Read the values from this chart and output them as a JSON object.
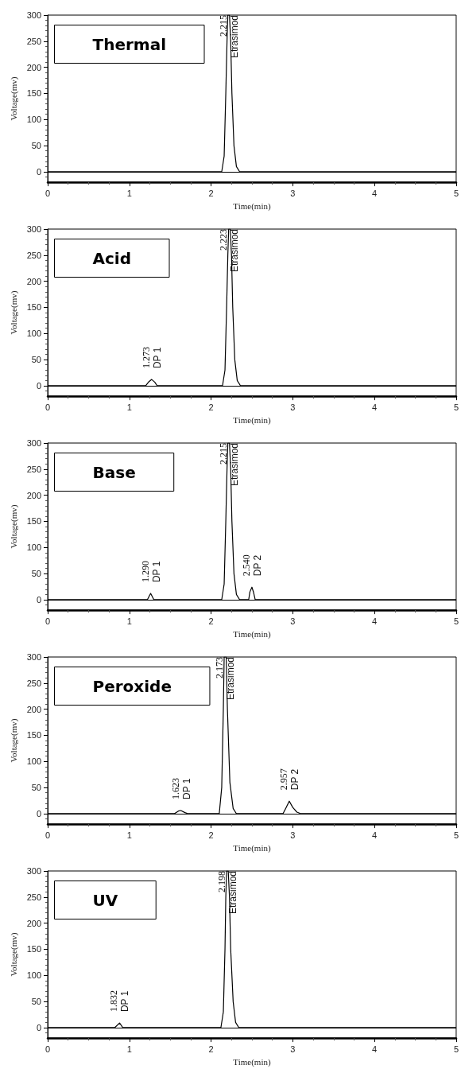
{
  "chart_data": [
    {
      "type": "line",
      "title": "Thermal",
      "xlabel": "Time(min)",
      "ylabel": "Voltage(mv)",
      "xlim": [
        0,
        5
      ],
      "ylim": [
        -20,
        300
      ],
      "xticks": [
        0,
        1,
        2,
        3,
        4,
        5
      ],
      "yticks": [
        0,
        50,
        100,
        150,
        200,
        250,
        300
      ],
      "series": [
        {
          "color": "#000000",
          "x": [
            0,
            2.13,
            2.16,
            2.18,
            2.195,
            2.205,
            2.225,
            2.24,
            2.255,
            2.28,
            2.31,
            2.35,
            5
          ],
          "values": [
            0,
            0,
            30,
            150,
            250,
            300,
            300,
            250,
            150,
            50,
            10,
            0,
            0
          ]
        }
      ],
      "ref_lines": [
        {
          "axis": "y",
          "value": 0,
          "label": null,
          "color": "#000000"
        }
      ],
      "annotations": [
        {
          "text": "2.215",
          "x": 2.215,
          "y": 300
        },
        {
          "text": "Etrasimod",
          "x": 2.215,
          "y": 300
        }
      ]
    },
    {
      "type": "line",
      "title": "Acid",
      "xlabel": "Time(min)",
      "ylabel": "Voltage(mv)",
      "xlim": [
        0,
        5
      ],
      "ylim": [
        -20,
        300
      ],
      "xticks": [
        0,
        1,
        2,
        3,
        4,
        5
      ],
      "yticks": [
        0,
        50,
        100,
        150,
        200,
        250,
        300
      ],
      "series": [
        {
          "color": "#000000",
          "x": [
            0,
            1.2,
            1.24,
            1.273,
            1.31,
            1.34,
            2.14,
            2.17,
            2.19,
            2.205,
            2.215,
            2.235,
            2.25,
            2.265,
            2.29,
            2.32,
            2.36,
            5
          ],
          "values": [
            0,
            0,
            8,
            12,
            7,
            0,
            0,
            30,
            150,
            250,
            300,
            300,
            250,
            150,
            50,
            10,
            0,
            0
          ]
        }
      ],
      "ref_lines": [
        {
          "axis": "y",
          "value": 0,
          "label": null,
          "color": "#000000"
        }
      ],
      "annotations": [
        {
          "text": "1.273",
          "x": 1.273,
          "y": 12
        },
        {
          "text": "DP 1",
          "x": 1.273,
          "y": 12
        },
        {
          "text": "2.223",
          "x": 2.223,
          "y": 300
        },
        {
          "text": "Etrasimod",
          "x": 2.223,
          "y": 300
        }
      ]
    },
    {
      "type": "line",
      "title": "Base",
      "xlabel": "Time(min)",
      "ylabel": "Voltage(mv)",
      "xlim": [
        0,
        5
      ],
      "ylim": [
        -20,
        300
      ],
      "xticks": [
        0,
        1,
        2,
        3,
        4,
        5
      ],
      "yticks": [
        0,
        50,
        100,
        150,
        200,
        250,
        300
      ],
      "series": [
        {
          "color": "#000000",
          "x": [
            0,
            1.22,
            1.26,
            1.3,
            2.13,
            2.16,
            2.18,
            2.195,
            2.205,
            2.225,
            2.24,
            2.255,
            2.28,
            2.31,
            2.35,
            2.46,
            2.475,
            2.5,
            2.52,
            2.54,
            5
          ],
          "values": [
            0,
            0,
            12,
            0,
            0,
            30,
            150,
            250,
            300,
            300,
            250,
            150,
            50,
            10,
            0,
            0,
            15,
            24,
            14,
            0,
            0
          ]
        }
      ],
      "ref_lines": [
        {
          "axis": "y",
          "value": 0,
          "label": null,
          "color": "#000000"
        }
      ],
      "annotations": [
        {
          "text": "1.290",
          "x": 1.26,
          "y": 12
        },
        {
          "text": "DP 1",
          "x": 1.26,
          "y": 12
        },
        {
          "text": "2.215",
          "x": 2.215,
          "y": 300
        },
        {
          "text": "Etrasimod",
          "x": 2.215,
          "y": 300
        },
        {
          "text": "2.540",
          "x": 2.5,
          "y": 24
        },
        {
          "text": "DP 2",
          "x": 2.5,
          "y": 24
        }
      ]
    },
    {
      "type": "line",
      "title": "Peroxide",
      "xlabel": "Time(min)",
      "ylabel": "Voltage(mv)",
      "xlim": [
        0,
        5
      ],
      "ylim": [
        -20,
        300
      ],
      "xticks": [
        0,
        1,
        2,
        3,
        4,
        5
      ],
      "yticks": [
        0,
        50,
        100,
        150,
        200,
        250,
        300
      ],
      "series": [
        {
          "color": "#000000",
          "x": [
            0,
            1.55,
            1.6,
            1.63,
            1.68,
            1.72,
            2.1,
            2.13,
            2.15,
            2.16,
            2.185,
            2.2,
            2.23,
            2.27,
            2.31,
            2.88,
            2.92,
            2.957,
            3.0,
            3.05,
            3.1,
            5
          ],
          "values": [
            0,
            0,
            5,
            6,
            2,
            0,
            0,
            50,
            200,
            300,
            300,
            200,
            60,
            10,
            0,
            0,
            12,
            24,
            12,
            3,
            0,
            0
          ]
        }
      ],
      "ref_lines": [
        {
          "axis": "y",
          "value": 0,
          "label": null,
          "color": "#000000"
        }
      ],
      "annotations": [
        {
          "text": "1.623",
          "x": 1.63,
          "y": 6
        },
        {
          "text": "DP 1",
          "x": 1.63,
          "y": 6
        },
        {
          "text": "2.173",
          "x": 2.173,
          "y": 300
        },
        {
          "text": "Etrasimod",
          "x": 2.173,
          "y": 300
        },
        {
          "text": "2.957",
          "x": 2.957,
          "y": 24
        },
        {
          "text": "DP 2",
          "x": 2.957,
          "y": 24
        }
      ]
    },
    {
      "type": "line",
      "title": "UV",
      "xlabel": "Time(min)",
      "ylabel": "Voltage(mv)",
      "xlim": [
        0,
        5
      ],
      "ylim": [
        -20,
        300
      ],
      "xticks": [
        0,
        1,
        2,
        3,
        4,
        5
      ],
      "yticks": [
        0,
        50,
        100,
        150,
        200,
        250,
        300
      ],
      "series": [
        {
          "color": "#000000",
          "x": [
            0,
            0.82,
            0.88,
            0.92,
            2.12,
            2.15,
            2.17,
            2.18,
            2.19,
            2.21,
            2.225,
            2.24,
            2.27,
            2.3,
            2.34,
            5
          ],
          "values": [
            0,
            0,
            9,
            0,
            0,
            30,
            150,
            250,
            300,
            300,
            250,
            150,
            50,
            10,
            0,
            0
          ]
        }
      ],
      "ref_lines": [
        {
          "axis": "y",
          "value": 0,
          "label": null,
          "color": "#000000"
        }
      ],
      "annotations": [
        {
          "text": "1.832",
          "x": 0.88,
          "y": 9
        },
        {
          "text": "DP 1",
          "x": 0.88,
          "y": 9
        },
        {
          "text": "2.198",
          "x": 2.198,
          "y": 300
        },
        {
          "text": "Etrasimod",
          "x": 2.198,
          "y": 300
        }
      ]
    }
  ]
}
